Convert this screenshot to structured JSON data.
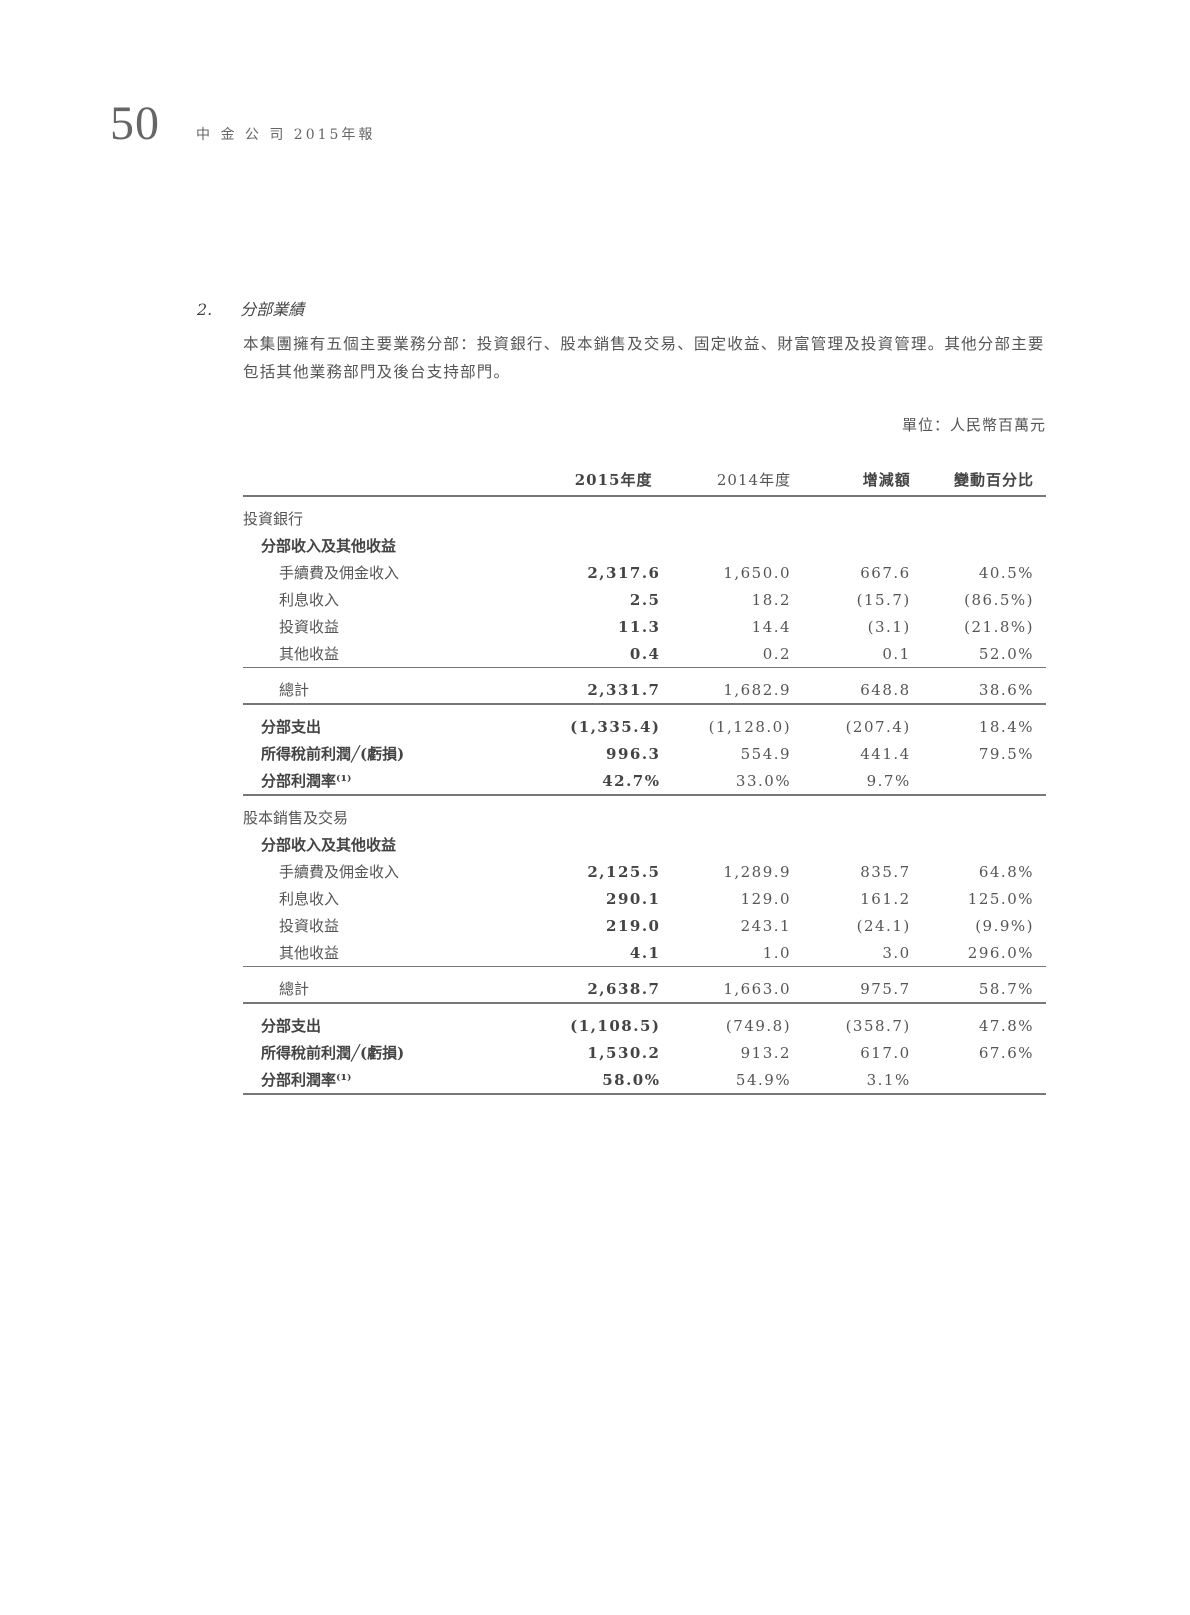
{
  "header": {
    "page_number": "50",
    "title": "中 金 公 司  2015年報"
  },
  "section": {
    "number": "2.",
    "title": "分部業績",
    "intro": "本集團擁有五個主要業務分部：投資銀行、股本銷售及交易、固定收益、財富管理及投資管理。其他分部主要包括其他業務部門及後台支持部門。",
    "unit": "單位：人民幣百萬元"
  },
  "table": {
    "columns": [
      "2015年度",
      "2014年度",
      "增減額",
      "變動百分比"
    ],
    "segments": [
      {
        "name": "投資銀行",
        "revenue_label": "分部收入及其他收益",
        "items": [
          [
            "手續費及佣金收入",
            "2,317.6",
            "1,650.0",
            "667.6",
            "40.5%"
          ],
          [
            "利息收入",
            "2.5",
            "18.2",
            "(15.7)",
            "(86.5%)"
          ],
          [
            "投資收益",
            "11.3",
            "14.4",
            "(3.1)",
            "(21.8%)"
          ],
          [
            "其他收益",
            "0.4",
            "0.2",
            "0.1",
            "52.0%"
          ]
        ],
        "total": [
          "總計",
          "2,331.7",
          "1,682.9",
          "648.8",
          "38.6%"
        ],
        "summary": [
          [
            "分部支出",
            "(1,335.4)",
            "(1,128.0)",
            "(207.4)",
            "18.4%"
          ],
          [
            "所得稅前利潤╱(虧損)",
            "996.3",
            "554.9",
            "441.4",
            "79.5%"
          ],
          [
            "分部利潤率⁽¹⁾",
            "42.7%",
            "33.0%",
            "9.7%",
            ""
          ]
        ]
      },
      {
        "name": "股本銷售及交易",
        "revenue_label": "分部收入及其他收益",
        "items": [
          [
            "手續費及佣金收入",
            "2,125.5",
            "1,289.9",
            "835.7",
            "64.8%"
          ],
          [
            "利息收入",
            "290.1",
            "129.0",
            "161.2",
            "125.0%"
          ],
          [
            "投資收益",
            "219.0",
            "243.1",
            "(24.1)",
            "(9.9%)"
          ],
          [
            "其他收益",
            "4.1",
            "1.0",
            "3.0",
            "296.0%"
          ]
        ],
        "total": [
          "總計",
          "2,638.7",
          "1,663.0",
          "975.7",
          "58.7%"
        ],
        "summary": [
          [
            "分部支出",
            "(1,108.5)",
            "(749.8)",
            "(358.7)",
            "47.8%"
          ],
          [
            "所得稅前利潤╱(虧損)",
            "1,530.2",
            "913.2",
            "617.0",
            "67.6%"
          ],
          [
            "分部利潤率⁽¹⁾",
            "58.0%",
            "54.9%",
            "3.1%",
            ""
          ]
        ]
      }
    ]
  }
}
